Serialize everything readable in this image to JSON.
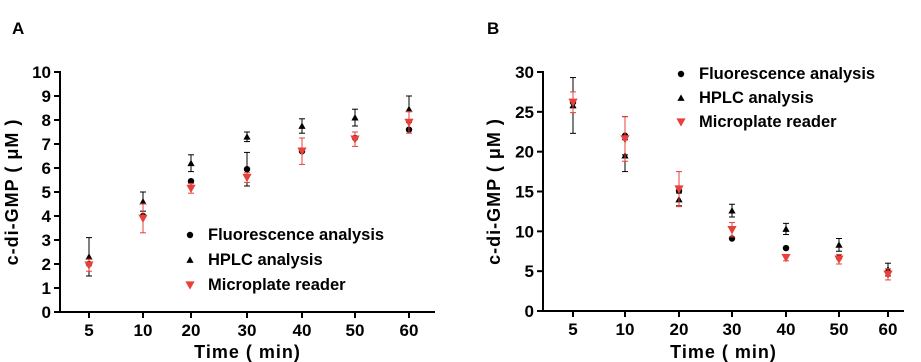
{
  "chart_data": [
    {
      "panel": "A",
      "type": "scatter",
      "categories": [
        "5",
        "10",
        "20",
        "30",
        "40",
        "50",
        "60"
      ],
      "xlabel": "Time ( min)",
      "ylabel": "c-di-GMP ( μM )",
      "ylim": [
        0,
        10
      ],
      "yticks": [
        0,
        1,
        2,
        3,
        4,
        5,
        6,
        7,
        8,
        9,
        10
      ],
      "legend_position": "bottom-right",
      "series": [
        {
          "name": "Fluorescence analysis",
          "marker": "circle",
          "color": "#000000",
          "values": [
            2.0,
            4.0,
            5.45,
            5.95,
            6.7,
            7.25,
            7.6
          ],
          "errors": [
            0.0,
            0.0,
            0.0,
            0.7,
            0.0,
            0.0,
            0.0
          ]
        },
        {
          "name": "HPLC analysis",
          "marker": "triangle-up",
          "color": "#000000",
          "values": [
            2.3,
            4.6,
            6.2,
            7.3,
            7.75,
            8.1,
            8.45
          ],
          "errors": [
            0.8,
            0.4,
            0.35,
            0.2,
            0.3,
            0.35,
            0.55
          ]
        },
        {
          "name": "Microplate reader",
          "marker": "triangle-down",
          "color": "#e8403a",
          "values": [
            1.95,
            3.9,
            5.15,
            5.6,
            6.7,
            7.2,
            7.9
          ],
          "errors": [
            0.25,
            0.6,
            0.2,
            0.2,
            0.55,
            0.3,
            0.45
          ]
        }
      ]
    },
    {
      "panel": "B",
      "type": "scatter",
      "categories": [
        "5",
        "10",
        "20",
        "30",
        "40",
        "50",
        "60"
      ],
      "xlabel": "Time ( min)",
      "ylabel": "c-di-GMP ( μM )",
      "ylim": [
        0,
        30
      ],
      "yticks": [
        0,
        5,
        10,
        15,
        20,
        25,
        30
      ],
      "legend_position": "top-right",
      "series": [
        {
          "name": "Fluorescence analysis",
          "marker": "circle",
          "color": "#000000",
          "values": [
            26.2,
            22.0,
            15.1,
            9.1,
            7.9,
            6.7,
            4.9
          ],
          "errors": [
            0.0,
            2.4,
            0.0,
            0.0,
            0.0,
            0.0,
            0.0
          ]
        },
        {
          "name": "HPLC analysis",
          "marker": "triangle-up",
          "color": "#000000",
          "values": [
            25.8,
            19.5,
            14.0,
            12.6,
            10.3,
            8.3,
            5.2
          ],
          "errors": [
            3.5,
            2.0,
            0.8,
            0.8,
            0.7,
            0.8,
            0.8
          ]
        },
        {
          "name": "Microplate reader",
          "marker": "triangle-down",
          "color": "#e8403a",
          "values": [
            26.2,
            21.6,
            15.3,
            10.2,
            6.7,
            6.5,
            4.6
          ],
          "errors": [
            1.3,
            2.8,
            2.2,
            0.9,
            0.4,
            0.6,
            0.7
          ]
        }
      ]
    }
  ]
}
